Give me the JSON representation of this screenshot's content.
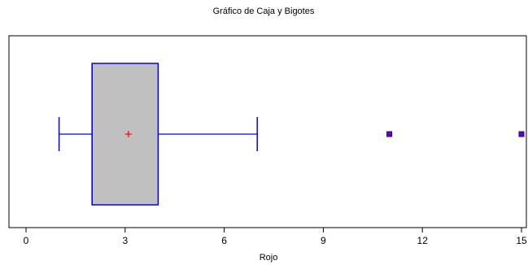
{
  "chart_data": {
    "type": "box",
    "title": "Gráfico de Caja y Bigotes",
    "xlabel": "Rojo",
    "ylabel": "",
    "xlim": [
      -0.5,
      15.2
    ],
    "x_ticks": [
      0,
      3,
      6,
      9,
      12,
      15
    ],
    "tick_labels": [
      "0",
      "3",
      "6",
      "9",
      "12",
      "15"
    ],
    "box": {
      "whisker_low": 1,
      "q1": 2,
      "median": 2,
      "q3": 4,
      "whisker_high": 7,
      "mean": 3.1,
      "outliers": [
        11,
        15
      ]
    },
    "colors": {
      "box_fill": "#c0c0c0",
      "box_stroke": "#0000ff",
      "mean_marker": "#ff0000",
      "outlier_fill": "#800080",
      "outlier_stroke": "#0000ff",
      "frame": "#000000"
    },
    "grid": false
  }
}
